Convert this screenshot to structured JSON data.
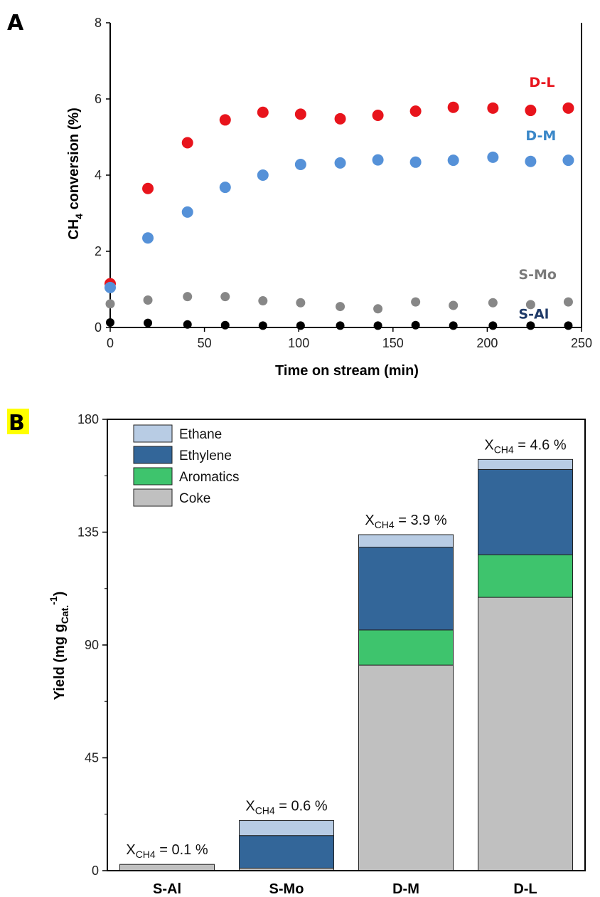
{
  "panels": {
    "a_label": "A",
    "b_label": "B",
    "b_label_bg": "#ffff00"
  },
  "chart_data": [
    {
      "type": "scatter",
      "xlabel": "Time on stream (min)",
      "ylabel_main": "CH",
      "ylabel_sub": "4",
      "ylabel_rest": " conversion (%)",
      "xlim": [
        0,
        250
      ],
      "ylim": [
        0,
        8
      ],
      "xticks": [
        0,
        50,
        100,
        150,
        200,
        250
      ],
      "yticks": [
        0,
        2,
        4,
        6,
        8
      ],
      "grid": false,
      "series": [
        {
          "name": "D-L",
          "color": "#e8141c",
          "x": [
            0,
            20,
            41,
            61,
            81,
            101,
            122,
            142,
            162,
            182,
            203,
            223,
            243
          ],
          "y": [
            1.15,
            3.65,
            4.85,
            5.45,
            5.65,
            5.6,
            5.48,
            5.57,
            5.68,
            5.78,
            5.76,
            5.7,
            5.76
          ]
        },
        {
          "name": "D-M",
          "color": "#5591d8",
          "x": [
            0,
            20,
            41,
            61,
            81,
            101,
            122,
            142,
            162,
            182,
            203,
            223,
            243
          ],
          "y": [
            1.05,
            2.35,
            3.03,
            3.68,
            4.0,
            4.28,
            4.32,
            4.4,
            4.34,
            4.39,
            4.47,
            4.36,
            4.39
          ]
        },
        {
          "name": "S-Mo",
          "color": "#878787",
          "x": [
            0,
            20,
            41,
            61,
            81,
            101,
            122,
            142,
            162,
            182,
            203,
            223,
            243
          ],
          "y": [
            0.62,
            0.72,
            0.81,
            0.81,
            0.7,
            0.65,
            0.55,
            0.49,
            0.67,
            0.58,
            0.65,
            0.6,
            0.67
          ]
        },
        {
          "name": "S-Al",
          "color": "#000000",
          "x": [
            0,
            20,
            41,
            61,
            81,
            101,
            122,
            142,
            162,
            182,
            203,
            223,
            243
          ],
          "y": [
            0.13,
            0.12,
            0.08,
            0.06,
            0.05,
            0.05,
            0.05,
            0.05,
            0.06,
            0.05,
            0.05,
            0.05,
            0.05
          ]
        }
      ],
      "series_label_colors": {
        "D-L": "#e8141c",
        "D-M": "#3a87c8",
        "S-Mo": "#7a7a7a",
        "S-Al": "#1f3a68"
      }
    },
    {
      "type": "bar",
      "stacked": true,
      "ylabel_main": "Yield (mg g",
      "ylabel_sub": "Cat.",
      "ylabel_sup": "-1",
      "ylabel_close": ")",
      "ylim": [
        0,
        180
      ],
      "yticks": [
        0,
        45,
        90,
        135,
        180
      ],
      "categories": [
        "S-Al",
        "S-Mo",
        "D-M",
        "D-L"
      ],
      "legend_position": "top-left",
      "series": [
        {
          "name": "Coke",
          "color": "#c0c0c0",
          "values": [
            2.5,
            1,
            82,
            109
          ]
        },
        {
          "name": "Aromatics",
          "color": "#3ec46d",
          "values": [
            0,
            0,
            14,
            17
          ]
        },
        {
          "name": "Ethylene",
          "color": "#336699",
          "values": [
            0,
            13,
            33,
            34
          ]
        },
        {
          "name": "Ethane",
          "color": "#b8cce4",
          "values": [
            0,
            6,
            5,
            4
          ]
        }
      ],
      "legend_order": [
        "Ethane",
        "Ethylene",
        "Aromatics",
        "Coke"
      ],
      "annotations": [
        {
          "main": "X",
          "sub": "CH4",
          "rest": " = 0.1 %"
        },
        {
          "main": "X",
          "sub": "CH4",
          "rest": " = 0.6 %"
        },
        {
          "main": "X",
          "sub": "CH4",
          "rest": " = 3.9 %"
        },
        {
          "main": "X",
          "sub": "CH4",
          "rest": " = 4.6 %"
        }
      ]
    }
  ]
}
